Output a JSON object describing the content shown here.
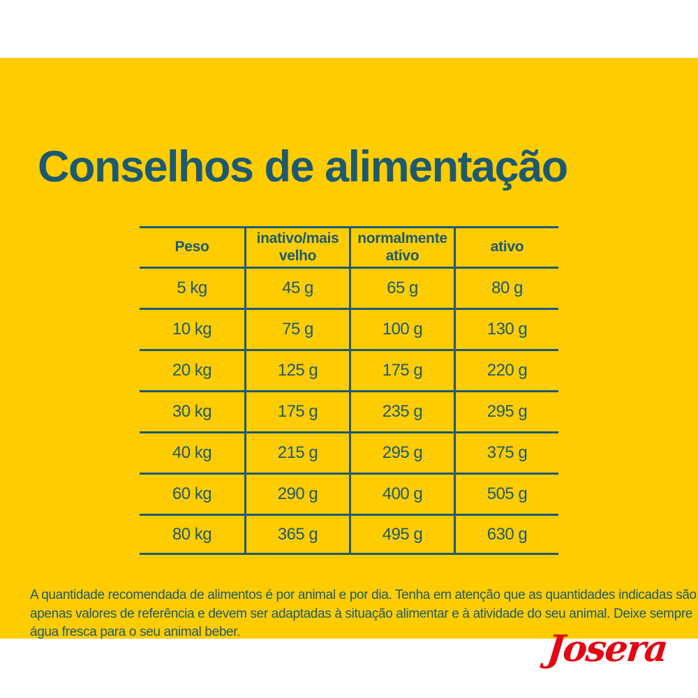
{
  "page": {
    "title": "Conselhos de alimentação"
  },
  "table": {
    "headers": [
      "Peso",
      "inativo/mais velho",
      "normalmente ativo",
      "ativo"
    ],
    "rows": [
      [
        "5 kg",
        "45 g",
        "65 g",
        "80 g"
      ],
      [
        "10 kg",
        "75 g",
        "100 g",
        "130 g"
      ],
      [
        "20 kg",
        "125 g",
        "175 g",
        "220 g"
      ],
      [
        "30 kg",
        "175 g",
        "235 g",
        "295 g"
      ],
      [
        "40 kg",
        "215 g",
        "295 g",
        "375 g"
      ],
      [
        "60 kg",
        "290 g",
        "400 g",
        "505 g"
      ],
      [
        "80 kg",
        "365 g",
        "495 g",
        "630 g"
      ]
    ]
  },
  "chart_data": {
    "type": "table",
    "title": "Conselhos de alimentação",
    "columns": [
      "Peso",
      "inativo/mais velho",
      "normalmente ativo",
      "ativo"
    ],
    "rows": [
      [
        "5 kg",
        "45 g",
        "65 g",
        "80 g"
      ],
      [
        "10 kg",
        "75 g",
        "100 g",
        "130 g"
      ],
      [
        "20 kg",
        "125 g",
        "175 g",
        "220 g"
      ],
      [
        "30 kg",
        "175 g",
        "235 g",
        "295 g"
      ],
      [
        "40 kg",
        "215 g",
        "295 g",
        "375 g"
      ],
      [
        "60 kg",
        "290 g",
        "400 g",
        "505 g"
      ],
      [
        "80 kg",
        "365 g",
        "495 g",
        "630 g"
      ]
    ]
  },
  "footer": {
    "lines": [
      "A quantidade recomendada de alimentos é por animal e por dia. Tenha em atenção que as quantidades indicadas são",
      "apenas valores de referência e devem ser adaptadas à situação alimentar e à atividade do seu animal. Deixe sempre",
      "água fresca para o seu animal beber."
    ]
  },
  "brand": {
    "logo_text": "Josera"
  },
  "colors": {
    "background": "#FFCC00",
    "text": "#1D5A70",
    "logo_red": "#E30613"
  }
}
